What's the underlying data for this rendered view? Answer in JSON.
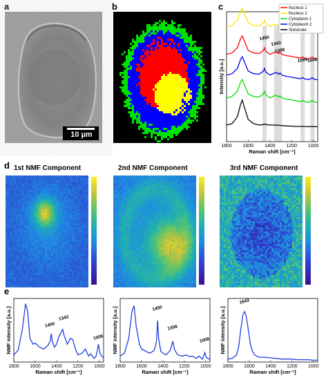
{
  "panel_labels": {
    "a": "a",
    "b": "b",
    "c": "c",
    "d": "d",
    "e": "e"
  },
  "panel_a": {
    "scalebar_label": "10 µm"
  },
  "panel_b": {
    "colors": {
      "background": "#000000",
      "nucleus1": "#ff0000",
      "nucleus2": "#ffff00",
      "cytoplasm1": "#00e000",
      "cytoplasm2": "#0000ff"
    }
  },
  "panel_c": {
    "legend": [
      {
        "name": "Nucleus 1",
        "color": "#ff0000"
      },
      {
        "name": "Nucleus 2",
        "color": "#ffe600"
      },
      {
        "name": "Cytoplasm 1",
        "color": "#00dd00"
      },
      {
        "name": "Cytoplasm 2",
        "color": "#0000ee"
      },
      {
        "name": "Substrate",
        "color": "#000000"
      }
    ],
    "peak_labels": [
      "1450",
      "1343",
      "1308",
      "1099",
      "1008"
    ],
    "ylabel": "Intensity [a.u.]",
    "xlabel": "Raman shift [cm⁻¹]",
    "xticks": [
      "1800",
      "1600",
      "1400",
      "1200",
      "1000"
    ]
  },
  "panel_d": {
    "titles": [
      "1st NMF Component",
      "2nd NMF Component",
      "3rd NMF Component"
    ]
  },
  "panel_e": {
    "ylabel": "NMF intensity [a.u.]",
    "xlabel": "Raman shift [cm⁻¹]",
    "xticks": [
      "1800",
      "1600",
      "1400",
      "1200",
      "1000"
    ],
    "peaks": [
      [
        "1450",
        "1343",
        "1008"
      ],
      [
        "1450",
        "1308",
        "1008"
      ],
      [
        "1643"
      ]
    ]
  },
  "chart_data": [
    {
      "type": "line",
      "panel": "c",
      "x": [
        1800,
        1750,
        1700,
        1670,
        1655,
        1640,
        1600,
        1550,
        1500,
        1460,
        1450,
        1440,
        1400,
        1343,
        1320,
        1308,
        1290,
        1250,
        1200,
        1150,
        1120,
        1099,
        1080,
        1040,
        1008,
        1000,
        960
      ],
      "xlabel": "Raman shift [cm⁻¹]",
      "ylabel": "Intensity [a.u.]",
      "xlim": [
        1800,
        960
      ],
      "series": [
        {
          "name": "Nucleus 2",
          "values": [
            0.3,
            0.35,
            0.55,
            0.9,
            1.0,
            0.85,
            0.45,
            0.35,
            0.33,
            0.45,
            0.55,
            0.42,
            0.3,
            0.4,
            0.33,
            0.38,
            0.3,
            0.25,
            0.22,
            0.18,
            0.16,
            0.2,
            0.15,
            0.13,
            0.2,
            0.15,
            0.12
          ]
        },
        {
          "name": "Nucleus 1",
          "values": [
            0.3,
            0.35,
            0.55,
            0.9,
            1.0,
            0.85,
            0.45,
            0.35,
            0.33,
            0.45,
            0.55,
            0.42,
            0.3,
            0.4,
            0.33,
            0.38,
            0.3,
            0.25,
            0.22,
            0.18,
            0.16,
            0.2,
            0.15,
            0.13,
            0.2,
            0.15,
            0.12
          ]
        },
        {
          "name": "Cytoplasm 2",
          "values": [
            0.3,
            0.35,
            0.55,
            0.9,
            1.0,
            0.85,
            0.45,
            0.35,
            0.33,
            0.45,
            0.55,
            0.42,
            0.3,
            0.4,
            0.33,
            0.38,
            0.3,
            0.25,
            0.22,
            0.18,
            0.16,
            0.2,
            0.15,
            0.13,
            0.2,
            0.15,
            0.12
          ]
        },
        {
          "name": "Cytoplasm 1",
          "values": [
            0.3,
            0.35,
            0.55,
            0.9,
            1.0,
            0.85,
            0.45,
            0.35,
            0.33,
            0.45,
            0.55,
            0.42,
            0.3,
            0.4,
            0.33,
            0.38,
            0.3,
            0.25,
            0.22,
            0.18,
            0.16,
            0.2,
            0.15,
            0.13,
            0.2,
            0.15,
            0.12
          ]
        },
        {
          "name": "Substrate",
          "values": [
            0.1,
            0.15,
            0.4,
            0.85,
            1.0,
            0.8,
            0.3,
            0.15,
            0.1,
            0.12,
            0.14,
            0.12,
            0.1,
            0.1,
            0.09,
            0.09,
            0.08,
            0.07,
            0.06,
            0.05,
            0.05,
            0.05,
            0.05,
            0.04,
            0.05,
            0.04,
            0.04
          ]
        }
      ]
    },
    {
      "type": "line",
      "panel": "e1",
      "x": [
        1800,
        1760,
        1720,
        1690,
        1670,
        1650,
        1620,
        1600,
        1560,
        1520,
        1480,
        1460,
        1450,
        1440,
        1420,
        1400,
        1380,
        1343,
        1330,
        1300,
        1270,
        1250,
        1220,
        1200,
        1160,
        1130,
        1100,
        1080,
        1050,
        1030,
        1008,
        995,
        970,
        960
      ],
      "xlabel": "Raman shift [cm⁻¹]",
      "ylabel": "NMF intensity [a.u.]",
      "xlim": [
        1800,
        960
      ],
      "values": [
        0.12,
        0.2,
        0.55,
        0.98,
        0.85,
        0.4,
        0.3,
        0.32,
        0.25,
        0.22,
        0.28,
        0.35,
        0.48,
        0.35,
        0.25,
        0.3,
        0.42,
        0.55,
        0.45,
        0.3,
        0.4,
        0.38,
        0.2,
        0.12,
        0.15,
        0.22,
        0.1,
        0.14,
        0.06,
        0.1,
        0.3,
        0.15,
        0.08,
        0.08
      ]
    },
    {
      "type": "line",
      "panel": "e2",
      "x": [
        1800,
        1760,
        1720,
        1690,
        1670,
        1650,
        1620,
        1600,
        1560,
        1520,
        1480,
        1460,
        1450,
        1440,
        1420,
        1400,
        1370,
        1330,
        1308,
        1290,
        1260,
        1220,
        1180,
        1150,
        1120,
        1090,
        1060,
        1030,
        1008,
        995,
        970,
        960
      ],
      "xlabel": "Raman shift [cm⁻¹]",
      "ylabel": "NMF intensity [a.u.]",
      "xlim": [
        1800,
        960
      ],
      "values": [
        0.1,
        0.15,
        0.4,
        0.85,
        0.95,
        0.6,
        0.3,
        0.22,
        0.18,
        0.15,
        0.2,
        0.35,
        0.7,
        0.4,
        0.18,
        0.15,
        0.12,
        0.2,
        0.35,
        0.2,
        0.12,
        0.1,
        0.12,
        0.09,
        0.1,
        0.06,
        0.1,
        0.05,
        0.16,
        0.08,
        0.05,
        0.05
      ]
    },
    {
      "type": "line",
      "panel": "e3",
      "x": [
        1800,
        1760,
        1720,
        1700,
        1680,
        1660,
        1643,
        1630,
        1610,
        1590,
        1570,
        1550,
        1520,
        1500,
        1450,
        1400,
        1350,
        1300,
        1250,
        1200,
        1150,
        1100,
        1050,
        1000,
        960
      ],
      "xlabel": "Raman shift [cm⁻¹]",
      "ylabel": "NMF intensity [a.u.]",
      "xlim": [
        1800,
        960
      ],
      "values": [
        0.05,
        0.06,
        0.12,
        0.25,
        0.55,
        0.8,
        0.85,
        0.78,
        0.55,
        0.3,
        0.18,
        0.12,
        0.09,
        0.08,
        0.08,
        0.07,
        0.06,
        0.05,
        0.05,
        0.05,
        0.04,
        0.04,
        0.04,
        0.03,
        0.03
      ]
    }
  ]
}
